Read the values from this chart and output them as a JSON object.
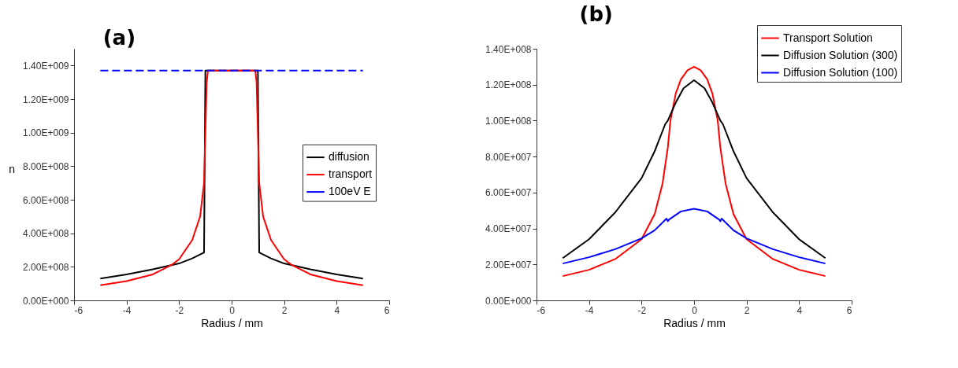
{
  "chart_data": [
    {
      "type": "line",
      "title": "(a)",
      "xlabel": "Radius / mm",
      "ylabel": "n",
      "xlim": [
        -6,
        6
      ],
      "xticks": [
        -6,
        -4,
        -2,
        0,
        2,
        4,
        6
      ],
      "ylim": [
        0,
        1500000000.0
      ],
      "yticks": [
        {
          "value": 0,
          "label": "0.00E+000"
        },
        {
          "value": 200000000.0,
          "label": "2.00E+008"
        },
        {
          "value": 400000000.0,
          "label": "4.00E+008"
        },
        {
          "value": 600000000.0,
          "label": "6.00E+008"
        },
        {
          "value": 800000000.0,
          "label": "8.00E+008"
        },
        {
          "value": 1000000000.0,
          "label": "1.00E+009"
        },
        {
          "value": 1200000000.0,
          "label": "1.20E+009"
        },
        {
          "value": 1400000000.0,
          "label": "1.40E+009"
        }
      ],
      "grid": false,
      "legend": "right",
      "series": [
        {
          "name": "diffusion",
          "color": "#000000",
          "x": [
            -5,
            -4,
            -3,
            -2,
            -1.5,
            -1.05,
            -1.0,
            1.0,
            1.05,
            1.5,
            2,
            3,
            4,
            5
          ],
          "values": [
            130000000.0,
            155000000.0,
            185000000.0,
            220000000.0,
            250000000.0,
            285000000.0,
            1370000000.0,
            1370000000.0,
            285000000.0,
            250000000.0,
            220000000.0,
            185000000.0,
            155000000.0,
            130000000.0
          ]
        },
        {
          "name": "transport",
          "color": "#ff0000",
          "x": [
            -5,
            -4,
            -3,
            -2.3,
            -2,
            -1.5,
            -1.2,
            -1.05,
            -1.0,
            -0.95,
            -0.9,
            0.9,
            0.95,
            1.0,
            1.05,
            1.2,
            1.5,
            2,
            2.3,
            3,
            4,
            5
          ],
          "values": [
            90000000.0,
            115000000.0,
            155000000.0,
            210000000.0,
            245000000.0,
            360000000.0,
            500000000.0,
            700000000.0,
            1000000000.0,
            1300000000.0,
            1370000000.0,
            1370000000.0,
            1300000000.0,
            1000000000.0,
            700000000.0,
            500000000.0,
            360000000.0,
            245000000.0,
            210000000.0,
            155000000.0,
            115000000.0,
            90000000.0
          ]
        },
        {
          "name": "100eV E",
          "color": "#0000ff",
          "line_style": "dashed",
          "x": [
            -5,
            5
          ],
          "values": [
            1370000000.0,
            1370000000.0
          ]
        }
      ]
    },
    {
      "type": "line",
      "title": "(b)",
      "xlabel": "Radius / mm",
      "xlim": [
        -6,
        6
      ],
      "xticks": [
        -6,
        -4,
        -2,
        0,
        2,
        4,
        6
      ],
      "ylim": [
        0,
        140000000.0
      ],
      "yticks": [
        {
          "value": 0,
          "label": "0.00E+000"
        },
        {
          "value": 20000000.0,
          "label": "2.00E+007"
        },
        {
          "value": 40000000.0,
          "label": "4.00E+007"
        },
        {
          "value": 60000000.0,
          "label": "6.00E+007"
        },
        {
          "value": 80000000.0,
          "label": "8.00E+007"
        },
        {
          "value": 100000000.0,
          "label": "1.00E+008"
        },
        {
          "value": 120000000.0,
          "label": "1.20E+008"
        },
        {
          "value": 140000000.0,
          "label": "1.40E+008"
        }
      ],
      "grid": false,
      "legend": "top right",
      "series": [
        {
          "name": "Transport Solution",
          "color": "#ff0000",
          "x": [
            -5,
            -4,
            -3,
            -2,
            -1.5,
            -1.2,
            -1,
            -0.9,
            -0.7,
            -0.5,
            -0.25,
            0,
            0.25,
            0.5,
            0.7,
            0.9,
            1,
            1.2,
            1.5,
            2,
            3,
            4,
            5
          ],
          "values": [
            13500000.0,
            17000000.0,
            23000000.0,
            34000000.0,
            48000000.0,
            65000000.0,
            85000000.0,
            100000000.0,
            115000000.0,
            123000000.0,
            128000000.0,
            130000000.0,
            128000000.0,
            123000000.0,
            115000000.0,
            100000000.0,
            85000000.0,
            65000000.0,
            48000000.0,
            34000000.0,
            23000000.0,
            17000000.0,
            13500000.0
          ]
        },
        {
          "name": "Diffusion Solution (300)",
          "color": "#000000",
          "x": [
            -5,
            -4,
            -3,
            -2,
            -1.5,
            -1.1,
            -1,
            -0.7,
            -0.4,
            0,
            0.4,
            0.7,
            1,
            1.1,
            1.5,
            2,
            3,
            4,
            5
          ],
          "values": [
            23500000.0,
            34000000.0,
            49000000.0,
            68000000.0,
            83000000.0,
            98000000.0,
            100000000.0,
            110000000.0,
            118000000.0,
            122500000.0,
            118000000.0,
            110000000.0,
            100000000.0,
            98000000.0,
            83000000.0,
            68000000.0,
            49000000.0,
            34000000.0,
            23500000.0
          ]
        },
        {
          "name": "Diffusion Solution (100)",
          "color": "#0000ff",
          "x": [
            -5,
            -4,
            -3,
            -2,
            -1.5,
            -1.05,
            -1.0,
            -0.95,
            -0.5,
            0,
            0.5,
            0.95,
            1.0,
            1.05,
            1.5,
            2,
            3,
            4,
            5
          ],
          "values": [
            20500000.0,
            24000000.0,
            28500000.0,
            34500000.0,
            39000000.0,
            45500000.0,
            44000000.0,
            45000000.0,
            49500000.0,
            51000000.0,
            49500000.0,
            45000000.0,
            44000000.0,
            45500000.0,
            39000000.0,
            34500000.0,
            28500000.0,
            24000000.0,
            20500000.0
          ]
        }
      ]
    }
  ]
}
